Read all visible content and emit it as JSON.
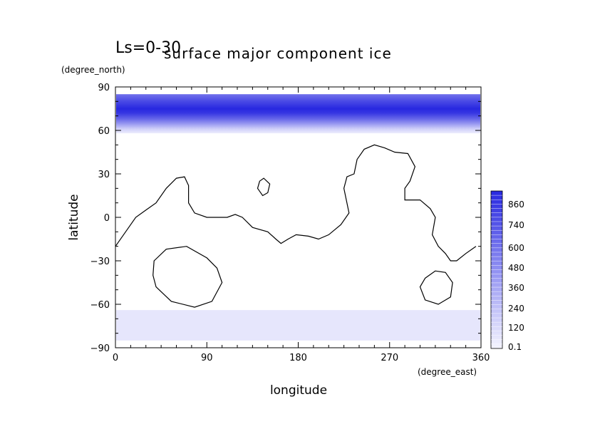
{
  "chart_data": {
    "type": "heatmap",
    "title": "surface major component ice",
    "subtitle": "Ls=0-30",
    "xlabel": "longitude",
    "xunit": "(degree_east)",
    "ylabel": "latitude",
    "yunit": "(degree_north)",
    "xlim": [
      0,
      360
    ],
    "ylim": [
      -90,
      90
    ],
    "xticks": [
      0,
      90,
      180,
      270,
      360
    ],
    "yticks": [
      90,
      60,
      30,
      0,
      -30,
      -60,
      -90
    ],
    "grid": false,
    "colorbar": {
      "placement": "right",
      "levels": [
        0.1,
        120,
        240,
        360,
        480,
        600,
        740,
        860
      ],
      "low_color": "#e6e6fc",
      "high_color": "#2828e0"
    },
    "fields": [
      {
        "region": "north polar cap",
        "lat_range": [
          58,
          85
        ],
        "profile": [
          {
            "lat": 85,
            "value": 550
          },
          {
            "lat": 80,
            "value": 720
          },
          {
            "lat": 75,
            "value": 860
          },
          {
            "lat": 72,
            "value": 800
          },
          {
            "lat": 68,
            "value": 600
          },
          {
            "lat": 64,
            "value": 350
          },
          {
            "lat": 61,
            "value": 150
          },
          {
            "lat": 58,
            "value": 30
          }
        ]
      },
      {
        "region": "south polar cap",
        "lat_range": [
          -85,
          -64
        ],
        "value": 120
      }
    ],
    "coastlines": [
      {
        "name": "continent outline",
        "points": [
          [
            0,
            -20
          ],
          [
            10,
            -10
          ],
          [
            20,
            0
          ],
          [
            30,
            5
          ],
          [
            40,
            10
          ],
          [
            50,
            20
          ],
          [
            60,
            27
          ],
          [
            68,
            28
          ],
          [
            72,
            22
          ],
          [
            72,
            10
          ],
          [
            78,
            3
          ],
          [
            90,
            0
          ],
          [
            110,
            0
          ],
          [
            118,
            2
          ],
          [
            125,
            0
          ],
          [
            135,
            -7
          ],
          [
            150,
            -10
          ],
          [
            158,
            -15
          ],
          [
            163,
            -18
          ],
          [
            170,
            -15
          ],
          [
            178,
            -12
          ],
          [
            190,
            -13
          ],
          [
            200,
            -15
          ],
          [
            210,
            -12
          ],
          [
            222,
            -5
          ],
          [
            230,
            3
          ],
          [
            225,
            20
          ],
          [
            228,
            28
          ],
          [
            235,
            30
          ],
          [
            238,
            40
          ],
          [
            245,
            47
          ],
          [
            255,
            50
          ],
          [
            265,
            48
          ],
          [
            275,
            45
          ],
          [
            288,
            44
          ],
          [
            295,
            35
          ],
          [
            290,
            25
          ],
          [
            285,
            20
          ],
          [
            285,
            12
          ],
          [
            300,
            12
          ],
          [
            310,
            6
          ],
          [
            315,
            0
          ],
          [
            312,
            -12
          ],
          [
            318,
            -20
          ],
          [
            325,
            -25
          ],
          [
            330,
            -30
          ],
          [
            336,
            -30
          ],
          [
            345,
            -25
          ],
          [
            355,
            -20
          ]
        ]
      },
      {
        "name": "small island",
        "points": [
          [
            140,
            20
          ],
          [
            145,
            15
          ],
          [
            150,
            17
          ],
          [
            152,
            23
          ],
          [
            146,
            27
          ],
          [
            142,
            25
          ]
        ]
      },
      {
        "name": "western basin",
        "points": [
          [
            38,
            -30
          ],
          [
            50,
            -22
          ],
          [
            70,
            -20
          ],
          [
            90,
            -28
          ],
          [
            100,
            -35
          ],
          [
            105,
            -45
          ],
          [
            95,
            -58
          ],
          [
            78,
            -62
          ],
          [
            55,
            -58
          ],
          [
            40,
            -48
          ],
          [
            37,
            -40
          ]
        ]
      },
      {
        "name": "eastern basin",
        "points": [
          [
            305,
            -42
          ],
          [
            315,
            -37
          ],
          [
            325,
            -38
          ],
          [
            332,
            -45
          ],
          [
            330,
            -55
          ],
          [
            318,
            -60
          ],
          [
            305,
            -57
          ],
          [
            300,
            -48
          ]
        ]
      }
    ]
  }
}
